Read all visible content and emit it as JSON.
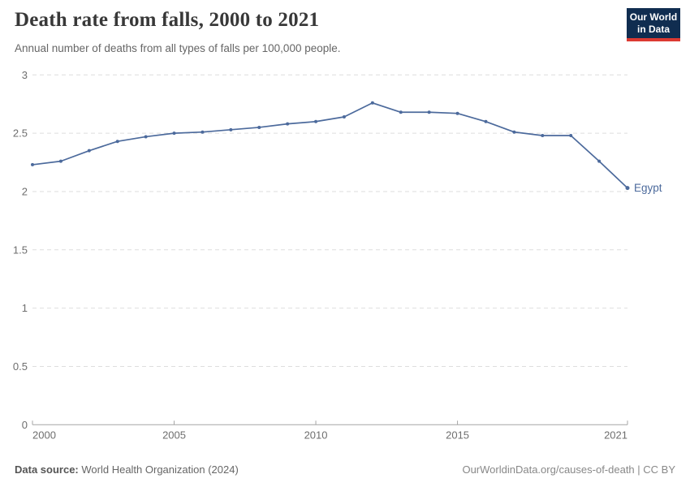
{
  "header": {
    "title": "Death rate from falls, 2000 to 2021",
    "subtitle": "Annual number of deaths from all types of falls per 100,000 people.",
    "logo": {
      "line1": "Our World",
      "line2": "in Data",
      "background": "#102D50",
      "accent": "#DC3A32"
    }
  },
  "chart_data": {
    "type": "line",
    "title": "Death rate from falls, 2000 to 2021",
    "subtitle": "Annual number of deaths from all types of falls per 100,000 people.",
    "xlim": [
      2000,
      2021
    ],
    "ylim": [
      0,
      3
    ],
    "x_ticks": [
      2000,
      2005,
      2010,
      2015,
      2021
    ],
    "y_ticks": [
      0,
      0.5,
      1,
      1.5,
      2,
      2.5,
      3
    ],
    "grid": "horizontal-dashed",
    "legend_position": "end-of-line-label",
    "series": [
      {
        "name": "Egypt",
        "color": "#4C6A9C",
        "x": [
          2000,
          2001,
          2002,
          2003,
          2004,
          2005,
          2006,
          2007,
          2008,
          2009,
          2010,
          2011,
          2012,
          2013,
          2014,
          2015,
          2016,
          2017,
          2018,
          2019,
          2020,
          2021
        ],
        "values": [
          2.23,
          2.26,
          2.35,
          2.43,
          2.47,
          2.5,
          2.51,
          2.53,
          2.55,
          2.58,
          2.6,
          2.64,
          2.76,
          2.68,
          2.68,
          2.67,
          2.6,
          2.51,
          2.48,
          2.48,
          2.26,
          2.03
        ]
      }
    ]
  },
  "colors": {
    "line": "#4C6A9C",
    "gridline": "#dedede",
    "axis": "#a5a5a5",
    "tick_label": "#6e6e6e",
    "title": "#383838",
    "subtitle": "#666666"
  },
  "footer": {
    "source_label": "Data source:",
    "source_value": "World Health Organization (2024)",
    "link": "OurWorldinData.org/causes-of-death | CC BY"
  }
}
